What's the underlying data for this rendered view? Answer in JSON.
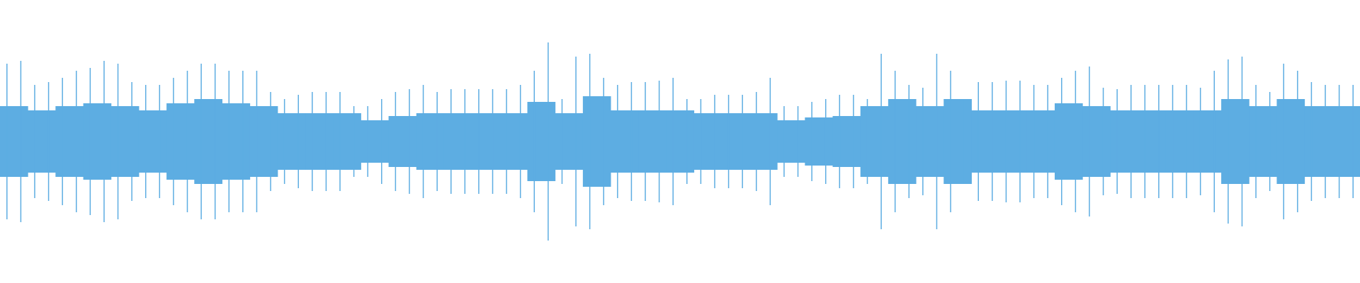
{
  "chart_data": {
    "type": "waveform",
    "ylim": [
      -1,
      1
    ],
    "series": [
      {
        "color": "#5dade2",
        "values": [
          0.55,
          0.57,
          0.4,
          0.42,
          0.45,
          0.5,
          0.52,
          0.57,
          0.55,
          0.42,
          0.4,
          0.4,
          0.45,
          0.5,
          0.55,
          0.55,
          0.5,
          0.5,
          0.5,
          0.35,
          0.3,
          0.33,
          0.35,
          0.35,
          0.35,
          0.25,
          0.25,
          0.3,
          0.35,
          0.37,
          0.4,
          0.35,
          0.37,
          0.37,
          0.37,
          0.37,
          0.37,
          0.4,
          0.5,
          0.7,
          0.3,
          0.6,
          0.62,
          0.45,
          0.4,
          0.42,
          0.42,
          0.43,
          0.45,
          0.3,
          0.3,
          0.33,
          0.33,
          0.33,
          0.35,
          0.45,
          0.25,
          0.25,
          0.28,
          0.3,
          0.33,
          0.33,
          0.3,
          0.62,
          0.5,
          0.4,
          0.38,
          0.62,
          0.5,
          0.3,
          0.42,
          0.42,
          0.43,
          0.43,
          0.4,
          0.4,
          0.45,
          0.5,
          0.53,
          0.38,
          0.37,
          0.4,
          0.4,
          0.4,
          0.4,
          0.4,
          0.38,
          0.5,
          0.58,
          0.6,
          0.4,
          0.35,
          0.55,
          0.5,
          0.42,
          0.4,
          0.4,
          0.4
        ]
      },
      {
        "color": "#5dade2",
        "values": [
          0.25,
          0.22,
          0.25,
          0.27,
          0.25,
          0.22,
          0.27,
          0.3,
          0.27,
          0.25,
          0.2,
          0.2,
          0.2,
          0.15,
          0.18,
          0.2,
          0.2,
          0.2,
          0.2,
          0.28,
          0.2,
          0.32,
          0.22,
          0.22,
          0.22,
          0.2,
          0.2,
          0.2,
          0.15,
          0.17,
          0.18,
          0.25,
          0.3,
          0.25,
          0.3,
          0.22,
          0.22,
          0.22,
          0.27,
          0.25,
          0.22,
          0.22,
          0.22,
          0.22,
          0.3,
          0.25,
          0.3,
          0.25,
          0.25
        ]
      }
    ]
  }
}
